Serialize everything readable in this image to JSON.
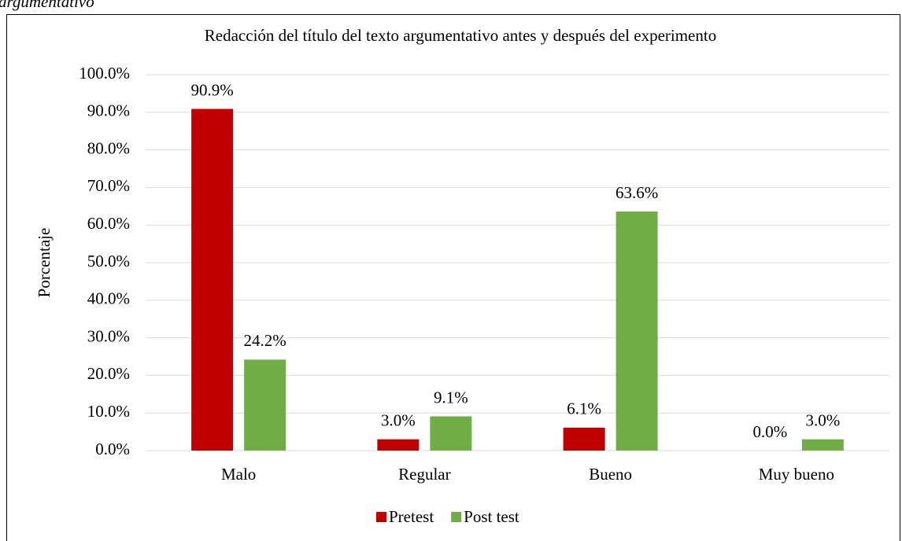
{
  "caption": "argumentativo",
  "chart_data": {
    "type": "bar",
    "title": "Redacción del título del texto argumentativo antes y después del experimento",
    "y_label": "Porcentaje",
    "categories": [
      "Malo",
      "Regular",
      "Bueno",
      "Muy bueno"
    ],
    "series": [
      {
        "name": "Pretest",
        "color": "#c00000",
        "values": [
          90.9,
          3.0,
          6.1,
          0.0
        ],
        "value_labels": [
          "90.9%",
          "3.0%",
          "6.1%",
          "0.0%"
        ]
      },
      {
        "name": "Post test",
        "color": "#70ad47",
        "values": [
          24.2,
          9.1,
          63.6,
          3.0
        ],
        "value_labels": [
          "24.2%",
          "9.1%",
          "63.6%",
          "3.0%"
        ]
      }
    ],
    "ylim": [
      0,
      100
    ],
    "yticks": [
      {
        "value": 0,
        "label": "0.0%"
      },
      {
        "value": 10,
        "label": "10.0%"
      },
      {
        "value": 20,
        "label": "20.0%"
      },
      {
        "value": 30,
        "label": "30.0%"
      },
      {
        "value": 40,
        "label": "40.0%"
      },
      {
        "value": 50,
        "label": "50.0%"
      },
      {
        "value": 60,
        "label": "60.0%"
      },
      {
        "value": 70,
        "label": "70.0%"
      },
      {
        "value": 80,
        "label": "80.0%"
      },
      {
        "value": 90,
        "label": "90.0%"
      },
      {
        "value": 100,
        "label": "100.0%"
      }
    ],
    "grid": true,
    "legend": "bottom"
  }
}
